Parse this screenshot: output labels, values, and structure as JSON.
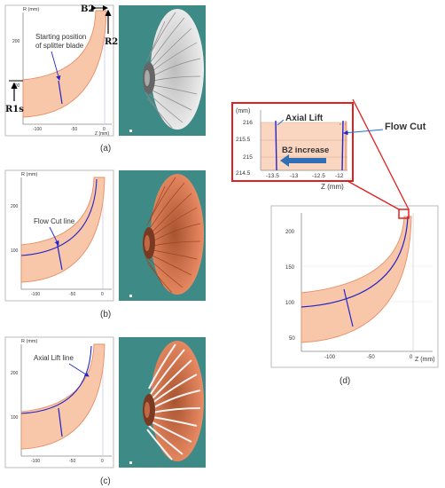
{
  "panel_a": {
    "axis_r": "R (mm)",
    "axis_z": "Z (mm)",
    "ticks_r": [
      "200",
      "100"
    ],
    "ticks_z": [
      "-100",
      "-50",
      "0"
    ],
    "annotation_line1": "Starting position",
    "annotation_line2": "of splitter blade",
    "b2_label": "B2",
    "r2_label": "R2",
    "r1s_label": "R1s",
    "caption": "(a)"
  },
  "panel_b": {
    "axis_r": "R (mm)",
    "ticks_r": [
      "200",
      "100"
    ],
    "ticks_z": [
      "-100",
      "-50",
      "0"
    ],
    "annotation": "Flow Cut line",
    "caption": "(b)"
  },
  "panel_c": {
    "axis_r": "R (mm)",
    "ticks_r": [
      "200",
      "100"
    ],
    "ticks_z": [
      "-100",
      "-50",
      "0"
    ],
    "annotation": "Axial Lift line",
    "caption": "(c)"
  },
  "panel_d": {
    "zoom": {
      "axis_r": "(mm)",
      "ticks_r": [
        "216",
        "215.5",
        "215",
        "214.5"
      ],
      "ticks_z": [
        "-13.5",
        "-13",
        "-12.5",
        "-12"
      ],
      "axis_z": "Z (mm)",
      "axial_lift": "Axial Lift",
      "flow_cut": "Flow Cut",
      "b2_increase": "B2 increase"
    },
    "main": {
      "ticks_r": [
        "200",
        "150",
        "100",
        "50"
      ],
      "ticks_z": [
        "-100",
        "-50",
        "0"
      ],
      "axis_z": "Z (mm)"
    },
    "caption": "(d)"
  },
  "colors": {
    "meridional_fill": "#f8c6a8",
    "meridional_stroke": "#e59068",
    "flow_line": "#2525c8",
    "callout_red": "#e02020",
    "callout_blue": "#1e6fd0",
    "render_bg": "#3d8a86",
    "impeller_white": "#e6e6e6",
    "impeller_orange": "#e8805a"
  }
}
